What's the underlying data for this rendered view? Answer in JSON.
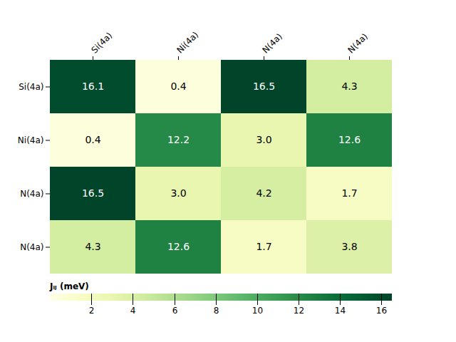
{
  "chart_data": {
    "type": "heatmap",
    "row_labels": [
      "Si(4a)",
      "Ni(4a)",
      "N(4a)",
      "N(4a)"
    ],
    "col_labels": [
      "Si(4a)",
      "Ni(4a)",
      "N(4a)",
      "N(4a)"
    ],
    "cells": [
      [
        16.1,
        0.4,
        16.5,
        4.3
      ],
      [
        0.4,
        12.2,
        3.0,
        12.6
      ],
      [
        16.5,
        3.0,
        4.2,
        1.7
      ],
      [
        4.3,
        12.6,
        1.7,
        3.8
      ]
    ],
    "value_labels": [
      [
        "16.1",
        "0.4",
        "16.5",
        "4.3"
      ],
      [
        "0.4",
        "12.2",
        "3.0",
        "12.6"
      ],
      [
        "16.5",
        "3.0",
        "4.2",
        "1.7"
      ],
      [
        "4.3",
        "12.6",
        "1.7",
        "3.8"
      ]
    ],
    "data_labels": true,
    "color": "YlGn",
    "colorbar": {
      "label": "Jᵢⱼ (meV)",
      "range": [
        0,
        16.5
      ],
      "ticks": [
        2,
        4,
        6,
        8,
        10,
        12,
        14,
        16
      ]
    }
  }
}
